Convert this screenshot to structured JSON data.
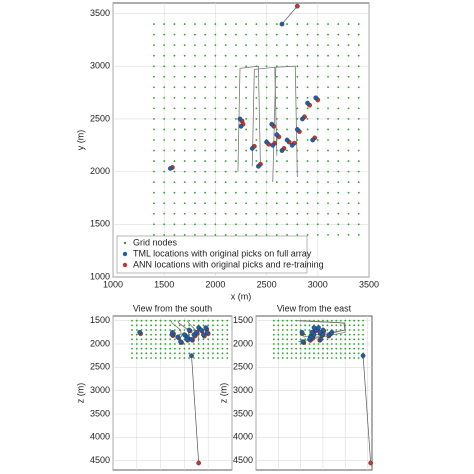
{
  "chart_data": {
    "type": "scatter",
    "grid_nodes": {
      "x": [
        1400,
        1500,
        1600,
        1700,
        1800,
        1900,
        2000,
        2100,
        2200,
        2300,
        2400,
        2500,
        2600,
        2700,
        2800,
        2900,
        3000,
        3100,
        3200,
        3300,
        3400
      ],
      "y": [
        1400,
        1500,
        1600,
        1700,
        1800,
        1900,
        2000,
        2100,
        2200,
        2300,
        2400,
        2500,
        2600,
        2700,
        2800,
        2900,
        3000,
        3100,
        3200,
        3300,
        3400
      ],
      "z": [
        1500,
        1600,
        1700,
        1800,
        1900,
        2000,
        2100,
        2200,
        2300
      ]
    },
    "series": [
      {
        "name": "Grid nodes",
        "color": "#2ca02c"
      },
      {
        "name": "TML locations with original picks on full array",
        "color": "#1f5fa8",
        "x": [
          1560,
          2240,
          2250,
          2360,
          2420,
          2500,
          2560,
          2600,
          2650,
          2700,
          2750,
          2800,
          2850,
          2900,
          2980,
          2650,
          2950,
          2550
        ],
        "y": [
          2030,
          2500,
          2430,
          2220,
          2050,
          2280,
          2250,
          2350,
          2200,
          2300,
          2250,
          2400,
          2500,
          2650,
          2700,
          3400,
          2300,
          2450
        ],
        "z": [
          1750,
          1800,
          1750,
          1850,
          1950,
          1800,
          1850,
          1700,
          1900,
          1800,
          1750,
          1650,
          1700,
          1800,
          1750,
          2250,
          1650,
          1900
        ]
      },
      {
        "name": "ANN locations with original picks and re-training",
        "color": "#c0392b",
        "x": [
          1580,
          2260,
          2270,
          2380,
          2440,
          2520,
          2580,
          2620,
          2670,
          2720,
          2770,
          2820,
          2870,
          2920,
          3000,
          2800,
          2970,
          2570
        ],
        "y": [
          2040,
          2480,
          2450,
          2240,
          2070,
          2260,
          2270,
          2330,
          2220,
          2280,
          2270,
          2380,
          2520,
          2630,
          2680,
          3570,
          2320,
          2430
        ],
        "z": [
          1780,
          1820,
          1780,
          1870,
          1970,
          1820,
          1880,
          1720,
          1920,
          1830,
          1770,
          1680,
          1720,
          1830,
          1780,
          4550,
          1680,
          1920
        ]
      }
    ],
    "wells": [
      {
        "x": [
          2220,
          2240,
          2420,
          2440
        ],
        "y": [
          2000,
          2980,
          3000,
          2050
        ],
        "z": [
          1500,
          1550,
          1700,
          1850
        ]
      },
      {
        "x": [
          2360,
          2380,
          2580,
          2600
        ],
        "y": [
          2050,
          2970,
          2990,
          2150
        ],
        "z": [
          1500,
          1550,
          1700,
          1900
        ]
      },
      {
        "x": [
          2560,
          2590,
          2780,
          2800
        ],
        "y": [
          1900,
          2990,
          3000,
          1950
        ],
        "z": [
          1500,
          1550,
          1750,
          1950
        ]
      }
    ],
    "panels": [
      {
        "h": "x",
        "v": "y",
        "xlabel": "x (m)",
        "ylabel": "y (m)",
        "xlim": [
          1000,
          3500
        ],
        "ylim": [
          1000,
          3600
        ],
        "xticks": [
          1000,
          1500,
          2000,
          2500,
          3000,
          3500
        ],
        "yticks": [
          1000,
          1500,
          2000,
          2500,
          3000,
          3500
        ],
        "xtick_labels": true,
        "invert_y": false,
        "legend": "lower left"
      },
      {
        "h": "x",
        "v": "z",
        "title": "View from the south",
        "ylabel": "z (m)",
        "xlim": [
          1000,
          3500
        ],
        "ylim": [
          1400,
          4700
        ],
        "xticks": [
          1000,
          1500,
          2000,
          2500,
          3000,
          3500
        ],
        "yticks": [
          1500,
          2000,
          2500,
          3000,
          3500,
          4000,
          4500
        ],
        "xtick_labels": false,
        "invert_y": true
      },
      {
        "h": "y",
        "v": "z",
        "title": "View from the east",
        "ylabel": "z (m)",
        "xlim": [
          1000,
          3600
        ],
        "ylim": [
          1400,
          4700
        ],
        "xticks": [
          1000,
          1500,
          2000,
          2500,
          3000,
          3500
        ],
        "yticks": [
          1500,
          2000,
          2500,
          3000,
          3500,
          4000,
          4500
        ],
        "xtick_labels": false,
        "invert_y": true
      }
    ],
    "grid": true
  }
}
